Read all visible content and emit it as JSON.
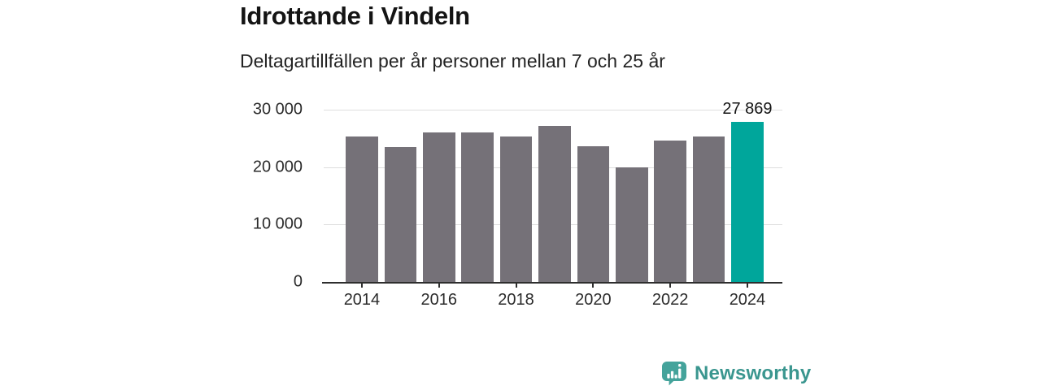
{
  "header": {
    "title": "Idrottande i Vindeln",
    "subtitle": "Deltagartillfällen per år personer mellan 7 och 25 år"
  },
  "chart_data": {
    "type": "bar",
    "title": "Idrottande i Vindeln",
    "subtitle": "Deltagartillfällen per år personer mellan 7 och 25 år",
    "categories": [
      "2014",
      "2015",
      "2016",
      "2017",
      "2018",
      "2019",
      "2020",
      "2021",
      "2022",
      "2023",
      "2024"
    ],
    "values": [
      25400,
      23500,
      26000,
      26100,
      25400,
      27200,
      23700,
      19900,
      24600,
      25300,
      27869
    ],
    "ylim": [
      0,
      30000
    ],
    "yticks": [
      0,
      10000,
      20000,
      30000
    ],
    "ytick_labels": [
      "0",
      "10 000",
      "20 000",
      "30 000"
    ],
    "xtick_labels": [
      "2014",
      "2016",
      "2018",
      "2020",
      "2022",
      "2024"
    ],
    "grid": true,
    "legend": false,
    "highlight": {
      "category": "2024",
      "label": "27 869"
    },
    "colors": {
      "bar": "#757178",
      "highlight": "#00a69b",
      "grid": "#dedede",
      "axis": "#2e2e2e",
      "text": "#2b2b2b"
    }
  },
  "footer": {
    "brand": "Newsworthy",
    "brand_color": "#3a968f",
    "logo_icon": "newsworthy-bar-chart-bubble-icon",
    "logo_color": "#44a39b"
  }
}
